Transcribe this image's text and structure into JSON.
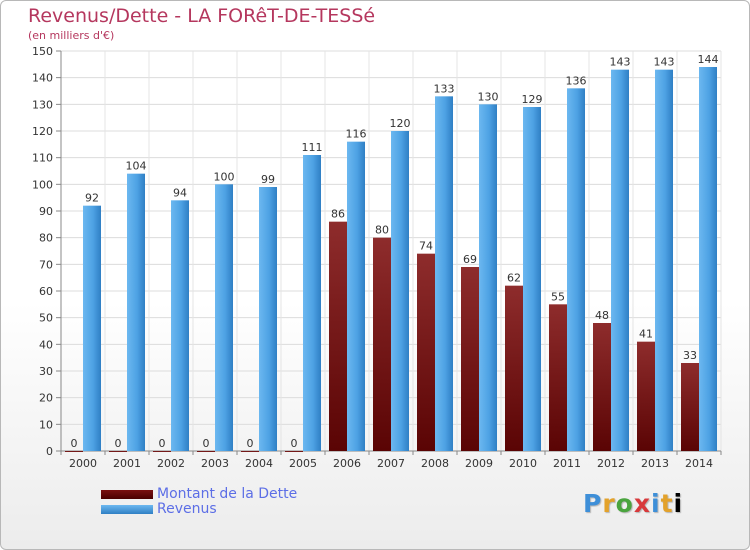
{
  "header": {
    "title": "Revenus/Dette - LA FORêT-DE-TESSé",
    "subtitle": "(en milliers d'€)"
  },
  "chart_data": {
    "type": "bar",
    "categories": [
      "2000",
      "2001",
      "2002",
      "2003",
      "2004",
      "2005",
      "2006",
      "2007",
      "2008",
      "2009",
      "2010",
      "2011",
      "2012",
      "2013",
      "2014"
    ],
    "series": [
      {
        "name": "Montant de la Dette",
        "color": "#8b1a1a",
        "values": [
          0,
          0,
          0,
          0,
          0,
          0,
          86,
          80,
          74,
          69,
          62,
          55,
          48,
          41,
          33
        ]
      },
      {
        "name": "Revenus",
        "color": "#4da3e6",
        "values": [
          92,
          104,
          94,
          100,
          99,
          111,
          116,
          120,
          133,
          130,
          129,
          136,
          143,
          143,
          144
        ]
      }
    ],
    "ylim": [
      0,
      150
    ],
    "yticks": [
      0,
      10,
      20,
      30,
      40,
      50,
      60,
      70,
      80,
      90,
      100,
      110,
      120,
      130,
      140,
      150
    ],
    "grid": true,
    "legend_position": "bottom-left"
  },
  "legend": {
    "debt_label": "Montant de la Dette",
    "revenue_label": "Revenus"
  },
  "logo": {
    "letters": [
      "P",
      "r",
      "o",
      "x",
      "i",
      "t",
      "i"
    ]
  }
}
